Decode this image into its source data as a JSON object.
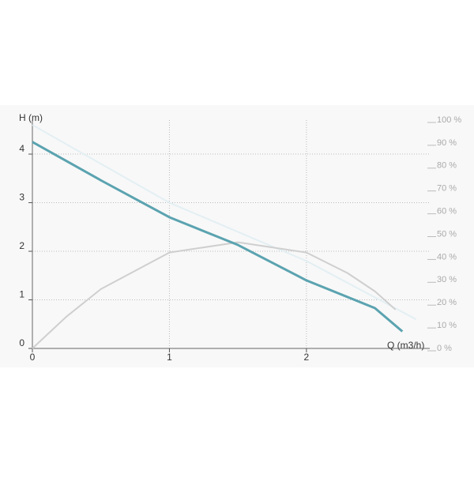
{
  "chart_data": {
    "type": "line",
    "xlabel": "Q (m3/h)",
    "ylabel": "H (m)",
    "xlim": [
      0,
      2.9
    ],
    "xticks": [
      0,
      1,
      2
    ],
    "ylim": [
      0,
      4.7
    ],
    "yticks": [
      0,
      1,
      2,
      3,
      4
    ],
    "y2lim": [
      0,
      100
    ],
    "y2ticks": [
      {
        "value": 0,
        "label": "0 %"
      },
      {
        "value": 10,
        "label": "10 %"
      },
      {
        "value": 20,
        "label": "20 %"
      },
      {
        "value": 30,
        "label": "30 %"
      },
      {
        "value": 40,
        "label": "40 %"
      },
      {
        "value": 50,
        "label": "50 %"
      },
      {
        "value": 60,
        "label": "60 %"
      },
      {
        "value": 70,
        "label": "70 %"
      },
      {
        "value": 80,
        "label": "80 %"
      },
      {
        "value": 90,
        "label": "90 %"
      },
      {
        "value": 100,
        "label": "100 %"
      }
    ],
    "grid": true,
    "series": [
      {
        "color": "#e3eff3",
        "x": [
          0,
          1,
          2,
          2.8
        ],
        "values": [
          4.6,
          3.0,
          1.8,
          0.6
        ]
      },
      {
        "color": "#cfcfcf",
        "axis": "y2",
        "x": [
          0,
          0.25,
          0.5,
          1,
          1.5,
          2,
          2.3,
          2.5,
          2.65
        ],
        "values": [
          0,
          14,
          26,
          42,
          46.5,
          42,
          33,
          25,
          17
        ]
      },
      {
        "color": "#5ba3b0",
        "x": [
          0,
          0.5,
          1,
          1.5,
          2,
          2.5,
          2.7
        ],
        "values": [
          4.25,
          3.46,
          2.7,
          2.13,
          1.4,
          0.83,
          0.35
        ]
      }
    ]
  }
}
